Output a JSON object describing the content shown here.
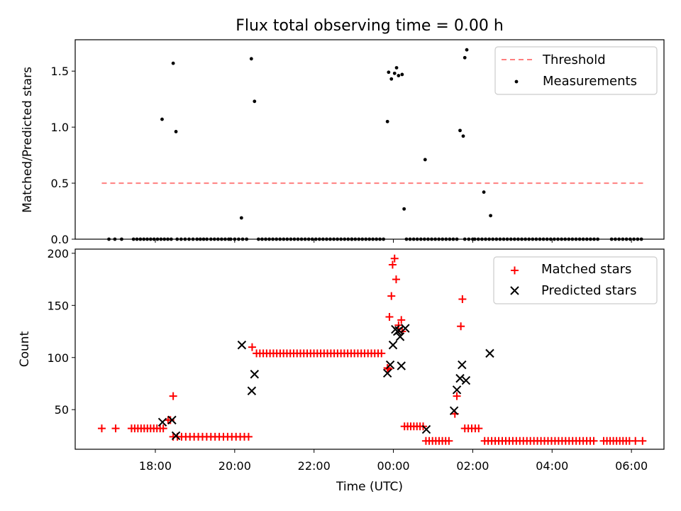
{
  "chart_data": [
    {
      "type": "scatter",
      "title": "Flux total observing time = 0.00 h",
      "xlabel": "",
      "ylabel": "Matched/Predicted stars",
      "xlim": [
        15.98,
        30.82
      ],
      "ylim": [
        0,
        1.78
      ],
      "yticks": [
        0.0,
        0.5,
        1.0,
        1.5
      ],
      "ytick_labels": [
        "0.0",
        "0.5",
        "1.0",
        "1.5"
      ],
      "legend_position": "upper right",
      "threshold": {
        "name": "Threshold",
        "value": 0.5,
        "x_range": [
          16.65,
          30.3
        ],
        "color": "#ff7f7f",
        "style": "dashed"
      },
      "series": [
        {
          "name": "Measurements",
          "marker": "dot",
          "color": "#000000",
          "x": [
            16.83,
            16.98,
            17.15,
            18.17,
            18.45,
            18.52,
            20.17,
            20.42,
            20.5,
            23.85,
            23.88,
            23.95,
            24.03,
            24.08,
            24.13,
            24.22,
            24.27,
            24.33,
            24.8,
            25.68,
            25.76,
            25.8,
            25.85,
            26.28
          ],
          "y": [
            0.0,
            0.0,
            0.0,
            1.07,
            1.57,
            0.96,
            0.19,
            1.61,
            1.23,
            1.05,
            1.49,
            1.43,
            1.48,
            1.53,
            1.46,
            1.47,
            0.27,
            0.0,
            0.71,
            0.97,
            0.92,
            1.62,
            1.69,
            0.42
          ]
        },
        {
          "name": "",
          "marker": "dot",
          "color": "#000000",
          "x": [
            26.45
          ],
          "y": [
            0.21
          ]
        }
      ],
      "zero_row_segments": [
        [
          17.45,
          18.4
        ],
        [
          18.55,
          18.95
        ],
        [
          19.05,
          19.3
        ],
        [
          19.4,
          19.85
        ],
        [
          19.9,
          20.3
        ],
        [
          20.6,
          22.95
        ],
        [
          22.95,
          23.75
        ],
        [
          24.42,
          25.6
        ],
        [
          25.8,
          26.0
        ],
        [
          26.05,
          29.15
        ],
        [
          29.5,
          30.25
        ]
      ]
    },
    {
      "type": "scatter",
      "title": "",
      "xlabel": "Time (UTC)",
      "ylabel": "Count",
      "xlim": [
        15.98,
        30.82
      ],
      "ylim": [
        12,
        204
      ],
      "yticks": [
        50,
        100,
        150,
        200
      ],
      "ytick_labels": [
        "50",
        "100",
        "150",
        "200"
      ],
      "xticks": [
        18,
        20,
        22,
        24,
        26,
        28,
        30
      ],
      "xtick_labels": [
        "18:00",
        "20:00",
        "22:00",
        "00:00",
        "02:00",
        "04:00",
        "06:00"
      ],
      "legend_position": "upper right",
      "series": [
        {
          "name": "Matched stars",
          "marker": "plus",
          "color": "#ff0000",
          "x": [
            18.45,
            18.32,
            18.38,
            20.44,
            23.85,
            23.88,
            23.9,
            23.95,
            23.98,
            24.03,
            24.07,
            24.13,
            24.2,
            24.22,
            25.55,
            25.6,
            25.7,
            25.74
          ],
          "y": [
            63,
            40,
            40,
            110,
            90,
            89,
            139,
            159,
            189,
            195,
            175,
            131,
            136,
            125,
            46,
            63,
            130,
            156
          ]
        }
      ],
      "matched_runs": [
        {
          "from": 16.65,
          "to": 17.0,
          "count": 2,
          "y": 32
        },
        {
          "from": 17.4,
          "to": 18.2,
          "count": 11,
          "y": 32
        },
        {
          "from": 18.45,
          "to": 20.35,
          "count": 19,
          "y": 24
        },
        {
          "from": 20.55,
          "to": 23.7,
          "count": 38,
          "y": 104
        },
        {
          "from": 24.28,
          "to": 24.75,
          "count": 7,
          "y": 34
        },
        {
          "from": 24.82,
          "to": 25.4,
          "count": 8,
          "y": 20
        },
        {
          "from": 25.8,
          "to": 26.15,
          "count": 5,
          "y": 32
        },
        {
          "from": 26.3,
          "to": 29.05,
          "count": 32,
          "y": 20
        },
        {
          "from": 29.3,
          "to": 29.95,
          "count": 9,
          "y": 20
        },
        {
          "from": 30.1,
          "to": 30.28,
          "count": 2,
          "y": 20
        }
      ],
      "predicted": {
        "name": "Predicted stars",
        "marker": "x",
        "color": "#000000",
        "x": [
          18.18,
          18.42,
          18.52,
          20.18,
          20.43,
          20.5,
          23.85,
          23.92,
          23.99,
          24.05,
          24.1,
          24.14,
          24.17,
          24.2,
          24.3,
          24.83,
          25.53,
          25.6,
          25.68,
          25.73,
          25.83,
          26.43
        ],
        "y": [
          38,
          40,
          25,
          112,
          68,
          84,
          85,
          93,
          112,
          127,
          125,
          126,
          120,
          92,
          128,
          31,
          49,
          69,
          80,
          93,
          78,
          104
        ]
      }
    }
  ]
}
